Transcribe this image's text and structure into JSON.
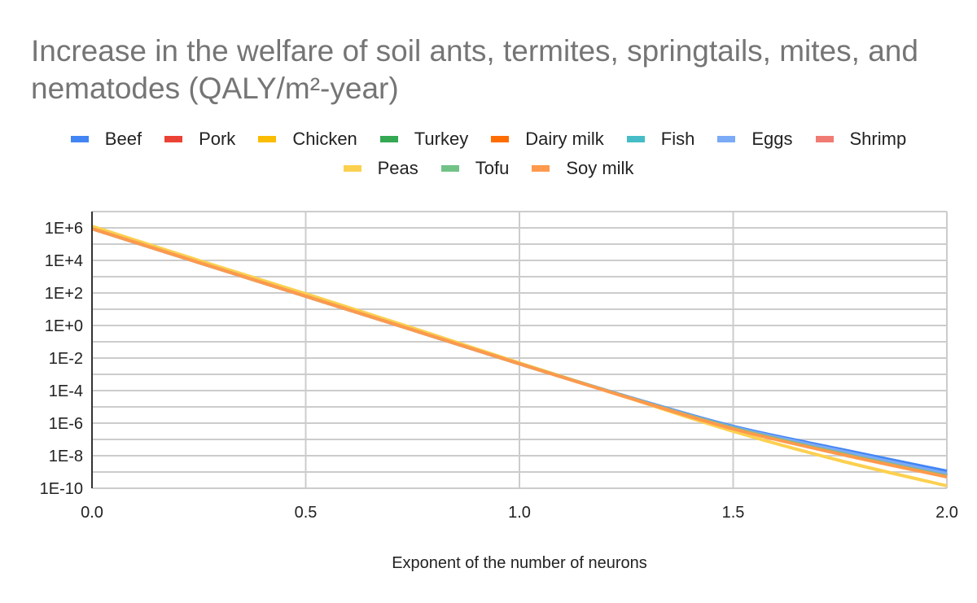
{
  "chart_data": {
    "type": "line",
    "title": "Increase in the welfare of soil ants, termites, springtails, mites, and nematodes (QALY/m²-year)",
    "xlabel": "Exponent of the number of neurons",
    "ylabel": "",
    "yscale": "log",
    "xlim": [
      0.0,
      2.0
    ],
    "ylim_log10": [
      -10,
      7
    ],
    "grid": true,
    "legend_position": "top",
    "x_ticks": [
      "0.0",
      "0.5",
      "1.0",
      "1.5",
      "2.0"
    ],
    "x_tick_values": [
      0.0,
      0.5,
      1.0,
      1.5,
      2.0
    ],
    "y_ticks": [
      "1E+6",
      "1E+4",
      "1E+2",
      "1E+0",
      "1E-2",
      "1E-4",
      "1E-6",
      "1E-8",
      "1E-10"
    ],
    "y_tick_log10": [
      6,
      4,
      2,
      0,
      -2,
      -4,
      -6,
      -8,
      -10
    ],
    "x": [
      0.0,
      0.25,
      0.5,
      0.75,
      1.0,
      1.25,
      1.5,
      1.75,
      2.0
    ],
    "series": [
      {
        "name": "Beef",
        "color": "#4285f4",
        "log10_values": [
          5.95,
          3.87,
          1.8,
          -0.27,
          -2.35,
          -4.35,
          -6.2,
          -7.6,
          -8.95
        ]
      },
      {
        "name": "Pork",
        "color": "#ea4335",
        "log10_values": [
          5.95,
          3.87,
          1.8,
          -0.27,
          -2.35,
          -4.38,
          -6.3,
          -7.8,
          -9.2
        ]
      },
      {
        "name": "Chicken",
        "color": "#fbbc04",
        "log10_values": [
          5.95,
          3.87,
          1.8,
          -0.27,
          -2.35,
          -4.38,
          -6.3,
          -7.8,
          -9.2
        ]
      },
      {
        "name": "Turkey",
        "color": "#34a853",
        "log10_values": [
          5.95,
          3.87,
          1.8,
          -0.27,
          -2.35,
          -4.38,
          -6.3,
          -7.8,
          -9.2
        ]
      },
      {
        "name": "Dairy milk",
        "color": "#ff6d01",
        "log10_values": [
          5.95,
          3.87,
          1.8,
          -0.27,
          -2.35,
          -4.38,
          -6.3,
          -7.8,
          -9.2
        ]
      },
      {
        "name": "Fish",
        "color": "#46bdc6",
        "log10_values": [
          5.95,
          3.87,
          1.8,
          -0.27,
          -2.35,
          -4.38,
          -6.3,
          -7.8,
          -9.2
        ]
      },
      {
        "name": "Eggs",
        "color": "#7baaf7",
        "log10_values": [
          5.95,
          3.87,
          1.8,
          -0.27,
          -2.35,
          -4.36,
          -6.25,
          -7.7,
          -9.1
        ]
      },
      {
        "name": "Shrimp",
        "color": "#f07b72",
        "log10_values": [
          5.95,
          3.87,
          1.8,
          -0.27,
          -2.35,
          -4.38,
          -6.3,
          -7.85,
          -9.25
        ]
      },
      {
        "name": "Peas",
        "color": "#fcd04f",
        "log10_values": [
          6.1,
          4.0,
          1.95,
          -0.15,
          -2.3,
          -4.4,
          -6.5,
          -8.3,
          -9.85
        ]
      },
      {
        "name": "Tofu",
        "color": "#71c287",
        "log10_values": [
          5.95,
          3.87,
          1.8,
          -0.27,
          -2.35,
          -4.38,
          -6.3,
          -7.85,
          -9.25
        ]
      },
      {
        "name": "Soy milk",
        "color": "#ff994d",
        "log10_values": [
          5.95,
          3.87,
          1.8,
          -0.27,
          -2.35,
          -4.4,
          -6.35,
          -7.9,
          -9.3
        ]
      }
    ]
  }
}
